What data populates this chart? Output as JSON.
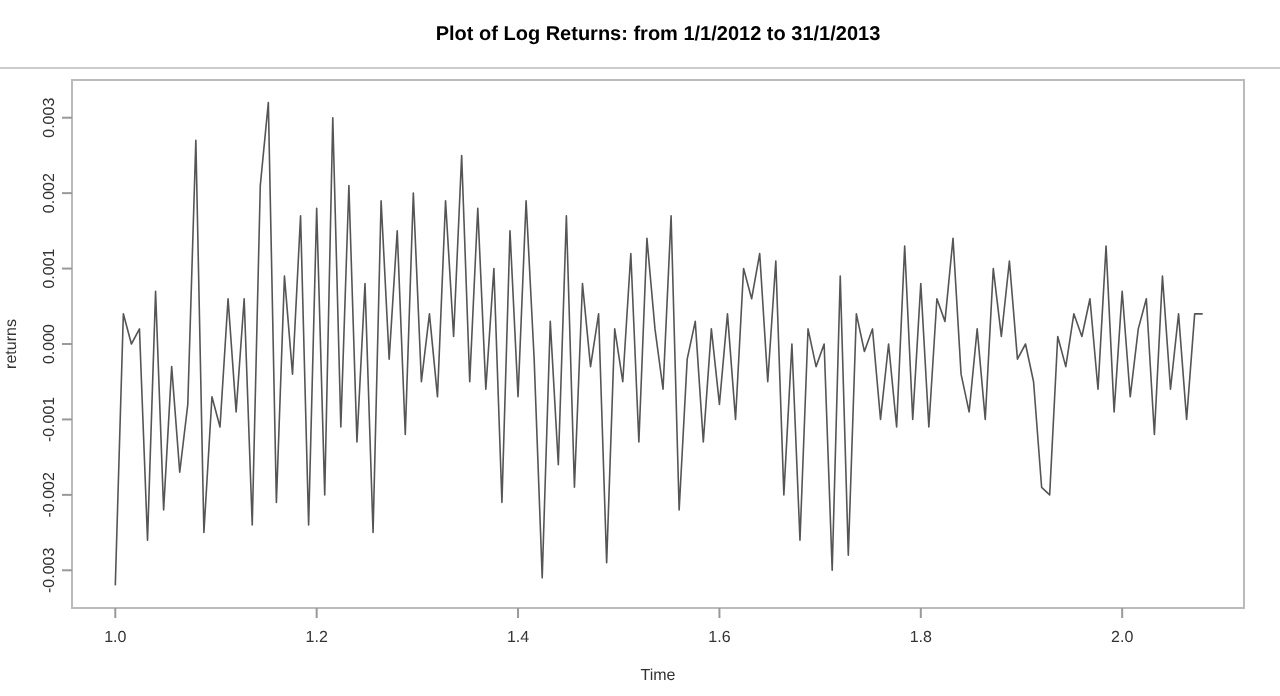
{
  "chart_data": {
    "type": "line",
    "title": "Plot of Log Returns: from 1/1/2012 to 31/1/2013",
    "xlabel": "Time",
    "ylabel": "returns",
    "xlim": [
      0.957,
      2.121
    ],
    "ylim": [
      -0.0035,
      0.0035
    ],
    "xticks": [
      {
        "value": 1,
        "label": "1.0"
      },
      {
        "value": 1.2,
        "label": "1.2"
      },
      {
        "value": 1.4,
        "label": "1.4"
      },
      {
        "value": 1.6,
        "label": "1.6"
      },
      {
        "value": 1.8,
        "label": "1.8"
      },
      {
        "value": 2,
        "label": "2.0"
      }
    ],
    "yticks": [
      {
        "value": -0.003,
        "label": "-0.003"
      },
      {
        "value": -0.002,
        "label": "-0.002"
      },
      {
        "value": -0.001,
        "label": "-0.001"
      },
      {
        "value": 0,
        "label": "0.000"
      },
      {
        "value": 0.001,
        "label": "0.001"
      },
      {
        "value": 0.002,
        "label": "0.002"
      },
      {
        "value": 0.003,
        "label": "0.003"
      }
    ],
    "grid": false,
    "marker": "none",
    "line_style": "solid",
    "x": [
      1.0,
      1.008,
      1.016,
      1.024,
      1.032,
      1.04,
      1.048,
      1.056,
      1.064,
      1.072,
      1.08,
      1.088,
      1.096,
      1.104,
      1.112,
      1.12,
      1.128,
      1.136,
      1.144,
      1.152,
      1.16,
      1.168,
      1.176,
      1.184,
      1.192,
      1.2,
      1.208,
      1.216,
      1.224,
      1.232,
      1.24,
      1.248,
      1.256,
      1.264,
      1.272,
      1.28,
      1.288,
      1.296,
      1.304,
      1.312,
      1.32,
      1.328,
      1.336,
      1.344,
      1.352,
      1.36,
      1.368,
      1.376,
      1.384,
      1.392,
      1.4,
      1.408,
      1.416,
      1.424,
      1.432,
      1.44,
      1.448,
      1.456,
      1.464,
      1.472,
      1.48,
      1.488,
      1.496,
      1.504,
      1.512,
      1.52,
      1.528,
      1.536,
      1.544,
      1.552,
      1.56,
      1.568,
      1.576,
      1.584,
      1.592,
      1.6,
      1.608,
      1.616,
      1.624,
      1.632,
      1.64,
      1.648,
      1.656,
      1.664,
      1.672,
      1.68,
      1.688,
      1.696,
      1.704,
      1.712,
      1.72,
      1.728,
      1.736,
      1.744,
      1.752,
      1.76,
      1.768,
      1.776,
      1.784,
      1.792,
      1.8,
      1.808,
      1.816,
      1.824,
      1.832,
      1.84,
      1.848,
      1.856,
      1.864,
      1.872,
      1.88,
      1.888,
      1.896,
      1.904,
      1.912,
      1.92,
      1.928,
      1.936,
      1.944,
      1.952,
      1.96,
      1.968,
      1.976,
      1.984,
      1.992,
      2.0,
      2.008,
      2.016,
      2.024,
      2.032,
      2.04,
      2.048,
      2.056,
      2.064,
      2.072,
      2.08
    ],
    "series": [
      {
        "color": "#555555",
        "values": [
          -0.0032,
          0.0004,
          0.0,
          0.0002,
          -0.0026,
          0.0007,
          -0.0022,
          -0.0003,
          -0.0017,
          -0.0008,
          0.0027,
          -0.0025,
          -0.0007,
          -0.0011,
          0.0006,
          -0.0009,
          0.0006,
          -0.0024,
          0.0021,
          0.0032,
          -0.0021,
          0.0009,
          -0.0004,
          0.0017,
          -0.0024,
          0.0018,
          -0.002,
          0.003,
          -0.0011,
          0.0021,
          -0.0013,
          0.0008,
          -0.0025,
          0.0019,
          -0.0002,
          0.0015,
          -0.0012,
          0.002,
          -0.0005,
          0.0004,
          -0.0007,
          0.0019,
          0.0001,
          0.0025,
          -0.0005,
          0.0018,
          -0.0006,
          0.001,
          -0.0021,
          0.0015,
          -0.0007,
          0.0019,
          -0.0002,
          -0.0031,
          0.0003,
          -0.0016,
          0.0017,
          -0.0019,
          0.0008,
          -0.0003,
          0.0004,
          -0.0029,
          0.0002,
          -0.0005,
          0.0012,
          -0.0013,
          0.0014,
          0.0002,
          -0.0006,
          0.0017,
          -0.0022,
          -0.0002,
          0.0003,
          -0.0013,
          0.0002,
          -0.0008,
          0.0004,
          -0.001,
          0.001,
          0.0006,
          0.0012,
          -0.0005,
          0.0011,
          -0.002,
          0.0,
          -0.0026,
          0.0002,
          -0.0003,
          0.0,
          -0.003,
          0.0009,
          -0.0028,
          0.0004,
          -0.0001,
          0.0002,
          -0.001,
          0.0,
          -0.0011,
          0.0013,
          -0.001,
          0.0008,
          -0.0011,
          0.0006,
          0.0003,
          0.0014,
          -0.0004,
          -0.0009,
          0.0002,
          -0.001,
          0.001,
          0.0001,
          0.0011,
          -0.0002,
          0.0,
          -0.0005,
          -0.0019,
          -0.002,
          0.0001,
          -0.0003,
          0.0004,
          0.0001,
          0.0006,
          -0.0006,
          0.0013,
          -0.0009,
          0.0007,
          -0.0007,
          0.0002,
          0.0006,
          -0.0012,
          0.0009,
          -0.0006,
          0.0004,
          -0.001,
          0.0004,
          0.0004
        ]
      }
    ]
  }
}
